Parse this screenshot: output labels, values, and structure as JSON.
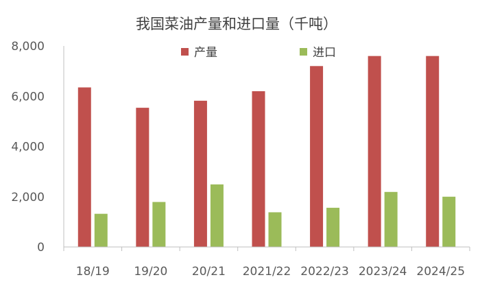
{
  "chart_data": {
    "type": "bar",
    "title": "我国菜油产量和进口量（千吨）",
    "xlabel": "",
    "ylabel": "",
    "categories": [
      "18/19",
      "19/20",
      "20/21",
      "2021/22",
      "2022/23",
      "2023/24",
      "2024/25"
    ],
    "series": [
      {
        "name": "产量",
        "color": "#c0504d",
        "values": [
          6350,
          5540,
          5820,
          6200,
          7200,
          7600,
          7600
        ]
      },
      {
        "name": "进口",
        "color": "#9bbb59",
        "values": [
          1320,
          1790,
          2490,
          1380,
          1560,
          2190,
          2000
        ]
      }
    ],
    "ylim": [
      0,
      8000
    ],
    "yticks": [
      "0",
      "2,000",
      "4,000",
      "6,000",
      "8,000"
    ],
    "ytick_values": [
      0,
      2000,
      4000,
      6000,
      8000
    ],
    "grid": false,
    "legend_position": "top-center",
    "colors": {
      "axis": "#bfbfbf",
      "text": "#595959",
      "title": "#404040"
    }
  }
}
